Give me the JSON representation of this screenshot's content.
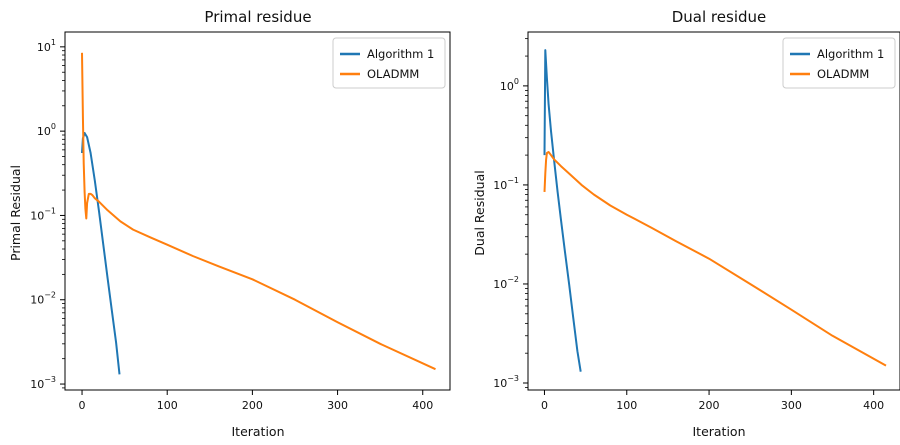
{
  "colors": {
    "algorithm1": "#1f77b4",
    "oladmm": "#ff7f0e"
  },
  "chart_data": [
    {
      "type": "line",
      "title": "Primal residue",
      "xlabel": "Iteration",
      "ylabel": "Primal Residual",
      "yscale": "log",
      "xlim": [
        -20,
        432
      ],
      "ylim": [
        0.00085,
        15
      ],
      "xticks": [
        0,
        100,
        200,
        300,
        400
      ],
      "yticks": [
        {
          "value": 0.001,
          "base": "10",
          "exp": "−3"
        },
        {
          "value": 0.01,
          "base": "10",
          "exp": "−2"
        },
        {
          "value": 0.1,
          "base": "10",
          "exp": "−1"
        },
        {
          "value": 1,
          "base": "10",
          "exp": "0"
        },
        {
          "value": 10,
          "base": "10",
          "exp": "1"
        }
      ],
      "legend": {
        "placement": "top-right",
        "entries": [
          "Algorithm 1",
          "OLADMM"
        ]
      },
      "series": [
        {
          "name": "Algorithm 1",
          "x": [
            0,
            1,
            3,
            6,
            10,
            15,
            20,
            25,
            30,
            35,
            40,
            44
          ],
          "y": [
            0.55,
            0.82,
            0.95,
            0.85,
            0.55,
            0.26,
            0.11,
            0.045,
            0.018,
            0.0075,
            0.0031,
            0.0013
          ]
        },
        {
          "name": "OLADMM",
          "x": [
            0,
            1,
            2,
            3,
            4,
            5,
            6,
            8,
            10,
            12,
            15,
            20,
            30,
            45,
            60,
            80,
            100,
            130,
            160,
            200,
            250,
            300,
            350,
            415
          ],
          "y": [
            8.5,
            1.5,
            0.42,
            0.19,
            0.12,
            0.092,
            0.14,
            0.18,
            0.18,
            0.175,
            0.16,
            0.145,
            0.115,
            0.085,
            0.068,
            0.055,
            0.045,
            0.033,
            0.025,
            0.0175,
            0.01,
            0.0054,
            0.003,
            0.0015
          ]
        }
      ]
    },
    {
      "type": "line",
      "title": "Dual residue",
      "xlabel": "Iteration",
      "ylabel": "Dual Residual",
      "yscale": "log",
      "xlim": [
        -20,
        432
      ],
      "ylim": [
        0.00085,
        3.5
      ],
      "xticks": [
        0,
        100,
        200,
        300,
        400
      ],
      "yticks": [
        {
          "value": 0.001,
          "base": "10",
          "exp": "−3"
        },
        {
          "value": 0.01,
          "base": "10",
          "exp": "−2"
        },
        {
          "value": 0.1,
          "base": "10",
          "exp": "−1"
        },
        {
          "value": 1,
          "base": "10",
          "exp": "0"
        }
      ],
      "legend": {
        "placement": "top-right",
        "entries": [
          "Algorithm 1",
          "OLADMM"
        ]
      },
      "series": [
        {
          "name": "Algorithm 1",
          "x": [
            0,
            1,
            3,
            5,
            8,
            12,
            16,
            20,
            25,
            30,
            35,
            40,
            44
          ],
          "y": [
            0.2,
            2.3,
            1.2,
            0.65,
            0.35,
            0.17,
            0.085,
            0.045,
            0.021,
            0.0098,
            0.0045,
            0.0021,
            0.0013
          ]
        },
        {
          "name": "OLADMM",
          "x": [
            0,
            1,
            2,
            3,
            5,
            8,
            12,
            20,
            30,
            45,
            60,
            80,
            100,
            130,
            160,
            200,
            250,
            300,
            350,
            415
          ],
          "y": [
            0.085,
            0.13,
            0.18,
            0.21,
            0.215,
            0.2,
            0.18,
            0.155,
            0.13,
            0.1,
            0.08,
            0.062,
            0.05,
            0.037,
            0.027,
            0.018,
            0.01,
            0.0055,
            0.003,
            0.0015
          ]
        }
      ]
    }
  ]
}
